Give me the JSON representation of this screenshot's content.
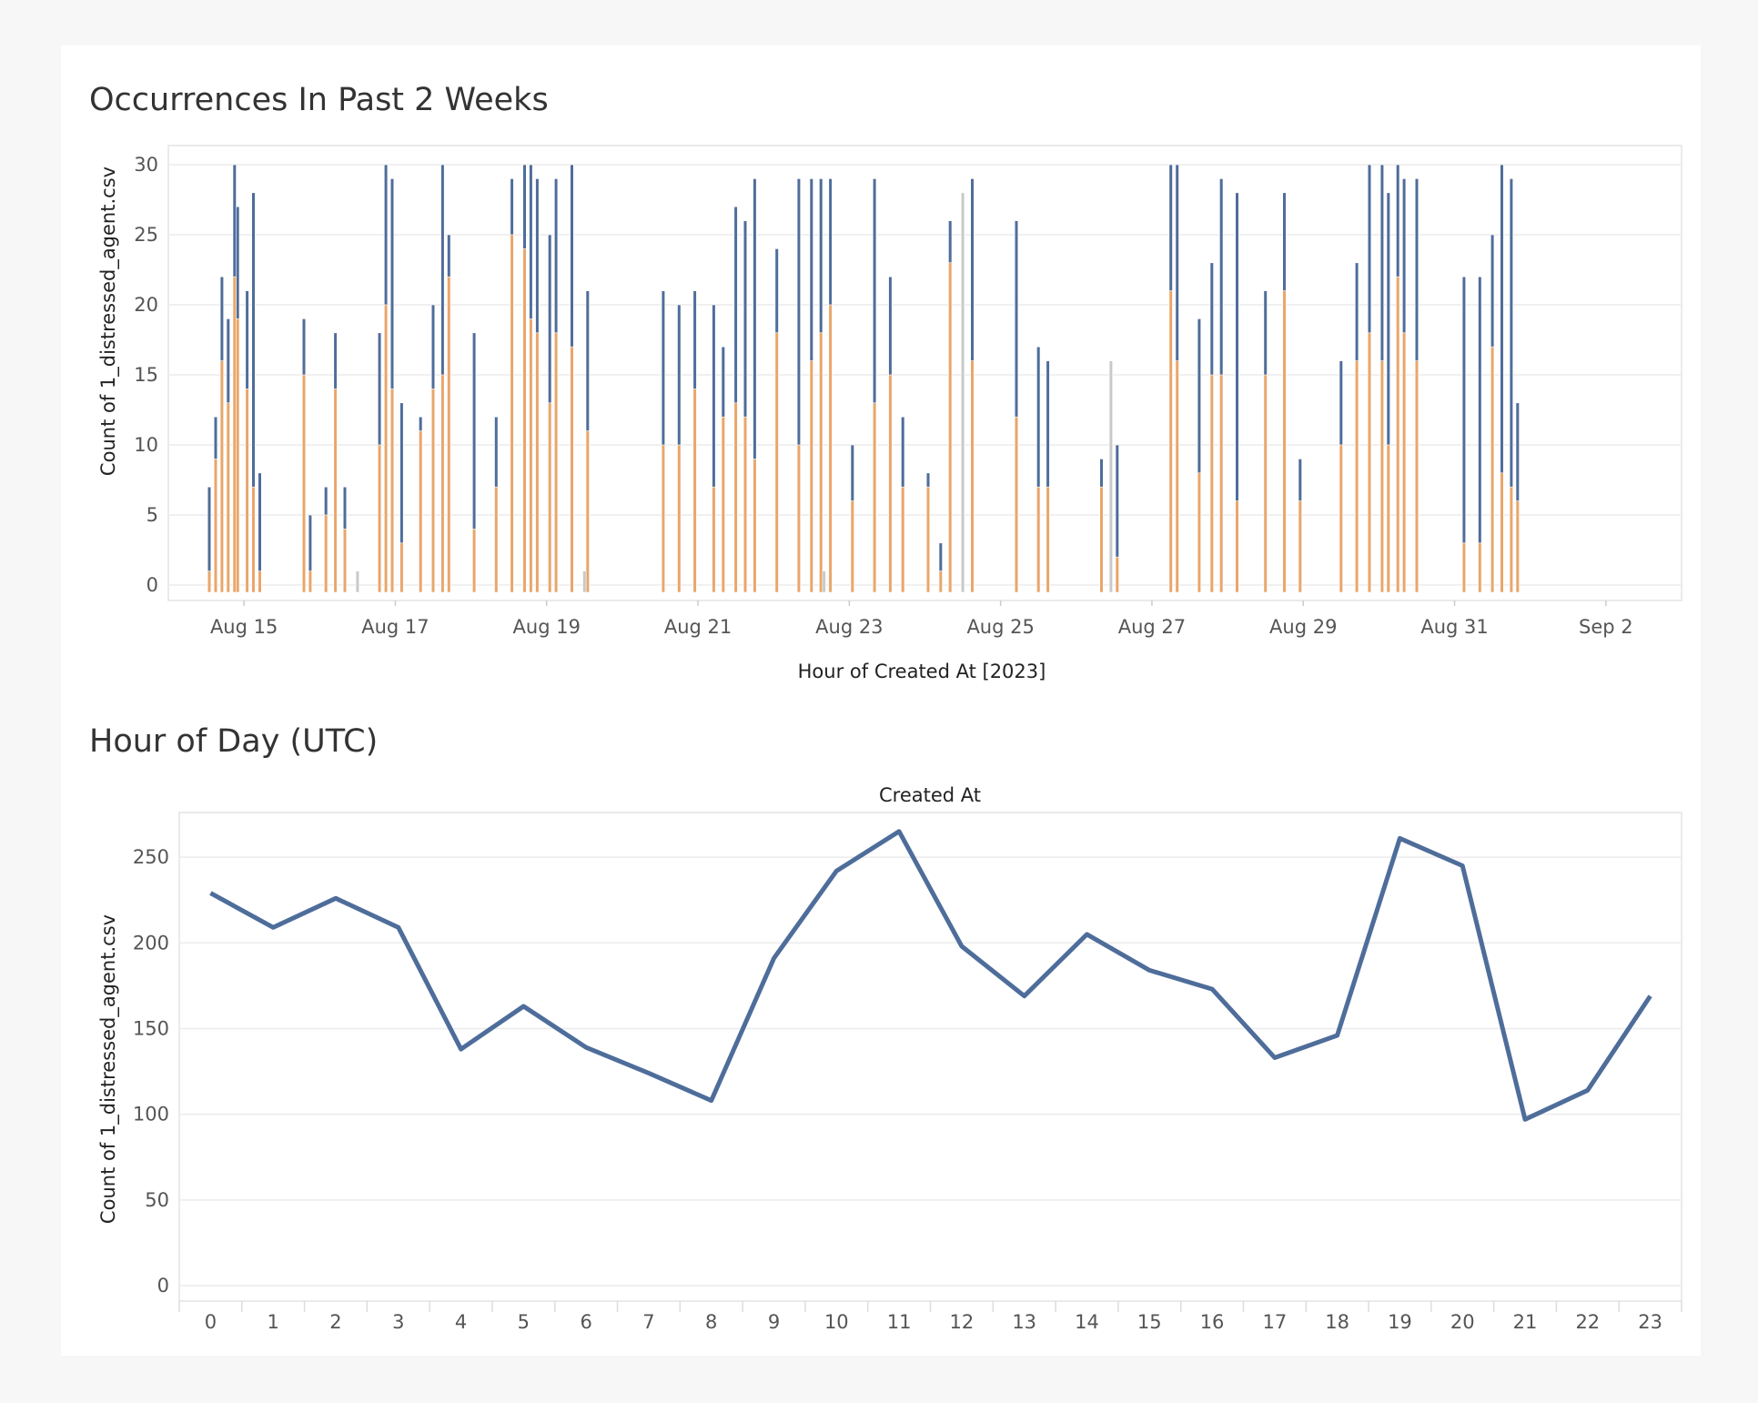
{
  "chart_data": [
    {
      "type": "bar",
      "title": "Occurrences In Past 2 Weeks",
      "xlabel": "Hour of Created At [2023]",
      "ylabel": "Count of 1_distressed_agent.csv",
      "ylim": [
        0,
        30
      ],
      "yticks": [
        0,
        5,
        10,
        15,
        20,
        25,
        30
      ],
      "xlim": [
        "2023-08-14T00:00",
        "2023-09-03T00:00"
      ],
      "xticks": [
        {
          "label": "Aug 15",
          "date": "2023-08-15"
        },
        {
          "label": "Aug 17",
          "date": "2023-08-17"
        },
        {
          "label": "Aug 19",
          "date": "2023-08-19"
        },
        {
          "label": "Aug 21",
          "date": "2023-08-21"
        },
        {
          "label": "Aug 23",
          "date": "2023-08-23"
        },
        {
          "label": "Aug 25",
          "date": "2023-08-25"
        },
        {
          "label": "Aug 27",
          "date": "2023-08-27"
        },
        {
          "label": "Aug 29",
          "date": "2023-08-29"
        },
        {
          "label": "Aug 31",
          "date": "2023-08-31"
        },
        {
          "label": "Sep 2",
          "date": "2023-09-02"
        }
      ],
      "stacked": true,
      "grid": "horizontal",
      "series": [
        {
          "color": "#4e6d9a",
          "values": [
            [
              "2023-08-14T13:00",
              7
            ],
            [
              "2023-08-14T15:00",
              12
            ],
            [
              "2023-08-14T17:00",
              22
            ],
            [
              "2023-08-14T19:00",
              19
            ],
            [
              "2023-08-14T21:00",
              30
            ],
            [
              "2023-08-14T22:00",
              27
            ],
            [
              "2023-08-15T01:00",
              21
            ],
            [
              "2023-08-15T03:00",
              28
            ],
            [
              "2023-08-15T05:00",
              8
            ],
            [
              "2023-08-15T19:00",
              19
            ],
            [
              "2023-08-15T21:00",
              5
            ],
            [
              "2023-08-16T02:00",
              7
            ],
            [
              "2023-08-16T05:00",
              18
            ],
            [
              "2023-08-16T08:00",
              7
            ],
            [
              "2023-08-16T19:00",
              18
            ],
            [
              "2023-08-16T21:00",
              30
            ],
            [
              "2023-08-16T23:00",
              29
            ],
            [
              "2023-08-17T02:00",
              13
            ],
            [
              "2023-08-17T08:00",
              12
            ],
            [
              "2023-08-17T12:00",
              20
            ],
            [
              "2023-08-17T15:00",
              30
            ],
            [
              "2023-08-17T17:00",
              25
            ],
            [
              "2023-08-18T01:00",
              18
            ],
            [
              "2023-08-18T08:00",
              12
            ],
            [
              "2023-08-18T13:00",
              29
            ],
            [
              "2023-08-18T17:00",
              30
            ],
            [
              "2023-08-18T19:00",
              30
            ],
            [
              "2023-08-18T21:00",
              29
            ],
            [
              "2023-08-19T01:00",
              25
            ],
            [
              "2023-08-19T03:00",
              29
            ],
            [
              "2023-08-19T08:00",
              30
            ],
            [
              "2023-08-19T13:00",
              21
            ],
            [
              "2023-08-20T13:00",
              21
            ],
            [
              "2023-08-20T18:00",
              20
            ],
            [
              "2023-08-20T23:00",
              21
            ],
            [
              "2023-08-21T05:00",
              20
            ],
            [
              "2023-08-21T08:00",
              17
            ],
            [
              "2023-08-21T12:00",
              27
            ],
            [
              "2023-08-21T15:00",
              26
            ],
            [
              "2023-08-21T18:00",
              29
            ],
            [
              "2023-08-22T01:00",
              24
            ],
            [
              "2023-08-22T08:00",
              29
            ],
            [
              "2023-08-22T12:00",
              29
            ],
            [
              "2023-08-22T15:00",
              29
            ],
            [
              "2023-08-22T18:00",
              29
            ],
            [
              "2023-08-23T01:00",
              10
            ],
            [
              "2023-08-23T08:00",
              29
            ],
            [
              "2023-08-23T13:00",
              22
            ],
            [
              "2023-08-23T17:00",
              12
            ],
            [
              "2023-08-24T01:00",
              8
            ],
            [
              "2023-08-24T05:00",
              3
            ],
            [
              "2023-08-24T08:00",
              26
            ],
            [
              "2023-08-24T12:00",
              28
            ],
            [
              "2023-08-24T15:00",
              29
            ],
            [
              "2023-08-25T05:00",
              26
            ],
            [
              "2023-08-25T12:00",
              17
            ],
            [
              "2023-08-25T15:00",
              16
            ],
            [
              "2023-08-26T08:00",
              9
            ],
            [
              "2023-08-26T13:00",
              10
            ],
            [
              "2023-08-27T06:00",
              30
            ],
            [
              "2023-08-27T08:00",
              30
            ],
            [
              "2023-08-27T15:00",
              19
            ],
            [
              "2023-08-27T19:00",
              23
            ],
            [
              "2023-08-27T22:00",
              29
            ],
            [
              "2023-08-28T03:00",
              28
            ],
            [
              "2023-08-28T12:00",
              21
            ],
            [
              "2023-08-28T18:00",
              28
            ],
            [
              "2023-08-28T23:00",
              9
            ],
            [
              "2023-08-29T12:00",
              16
            ],
            [
              "2023-08-29T17:00",
              23
            ],
            [
              "2023-08-29T21:00",
              30
            ],
            [
              "2023-08-30T01:00",
              30
            ],
            [
              "2023-08-30T03:00",
              28
            ],
            [
              "2023-08-30T06:00",
              30
            ],
            [
              "2023-08-30T08:00",
              29
            ],
            [
              "2023-08-30T12:00",
              29
            ],
            [
              "2023-08-31T03:00",
              22
            ],
            [
              "2023-08-31T08:00",
              22
            ],
            [
              "2023-08-31T12:00",
              25
            ],
            [
              "2023-08-31T15:00",
              30
            ],
            [
              "2023-08-31T18:00",
              29
            ],
            [
              "2023-08-31T20:00",
              13
            ]
          ]
        },
        {
          "color": "#e9a66a",
          "values": [
            [
              "2023-08-14T13:00",
              1
            ],
            [
              "2023-08-14T15:00",
              9
            ],
            [
              "2023-08-14T17:00",
              16
            ],
            [
              "2023-08-14T19:00",
              13
            ],
            [
              "2023-08-14T21:00",
              22
            ],
            [
              "2023-08-14T22:00",
              19
            ],
            [
              "2023-08-15T01:00",
              14
            ],
            [
              "2023-08-15T03:00",
              7
            ],
            [
              "2023-08-15T05:00",
              1
            ],
            [
              "2023-08-15T19:00",
              15
            ],
            [
              "2023-08-15T21:00",
              1
            ],
            [
              "2023-08-16T02:00",
              5
            ],
            [
              "2023-08-16T05:00",
              14
            ],
            [
              "2023-08-16T08:00",
              4
            ],
            [
              "2023-08-16T19:00",
              10
            ],
            [
              "2023-08-16T21:00",
              20
            ],
            [
              "2023-08-16T23:00",
              14
            ],
            [
              "2023-08-17T02:00",
              3
            ],
            [
              "2023-08-17T08:00",
              11
            ],
            [
              "2023-08-17T12:00",
              14
            ],
            [
              "2023-08-17T15:00",
              15
            ],
            [
              "2023-08-17T17:00",
              22
            ],
            [
              "2023-08-18T01:00",
              4
            ],
            [
              "2023-08-18T08:00",
              7
            ],
            [
              "2023-08-18T13:00",
              25
            ],
            [
              "2023-08-18T17:00",
              24
            ],
            [
              "2023-08-18T19:00",
              19
            ],
            [
              "2023-08-18T21:00",
              18
            ],
            [
              "2023-08-19T01:00",
              13
            ],
            [
              "2023-08-19T03:00",
              18
            ],
            [
              "2023-08-19T08:00",
              17
            ],
            [
              "2023-08-19T13:00",
              11
            ],
            [
              "2023-08-20T13:00",
              10
            ],
            [
              "2023-08-20T18:00",
              10
            ],
            [
              "2023-08-20T23:00",
              14
            ],
            [
              "2023-08-21T05:00",
              7
            ],
            [
              "2023-08-21T08:00",
              12
            ],
            [
              "2023-08-21T12:00",
              13
            ],
            [
              "2023-08-21T15:00",
              12
            ],
            [
              "2023-08-21T18:00",
              9
            ],
            [
              "2023-08-22T01:00",
              18
            ],
            [
              "2023-08-22T08:00",
              10
            ],
            [
              "2023-08-22T12:00",
              16
            ],
            [
              "2023-08-22T15:00",
              18
            ],
            [
              "2023-08-22T18:00",
              20
            ],
            [
              "2023-08-23T01:00",
              6
            ],
            [
              "2023-08-23T08:00",
              13
            ],
            [
              "2023-08-23T13:00",
              15
            ],
            [
              "2023-08-23T17:00",
              7
            ],
            [
              "2023-08-24T01:00",
              7
            ],
            [
              "2023-08-24T05:00",
              1
            ],
            [
              "2023-08-24T08:00",
              23
            ],
            [
              "2023-08-24T12:00",
              11
            ],
            [
              "2023-08-24T15:00",
              16
            ],
            [
              "2023-08-25T05:00",
              12
            ],
            [
              "2023-08-25T12:00",
              7
            ],
            [
              "2023-08-25T15:00",
              7
            ],
            [
              "2023-08-26T08:00",
              7
            ],
            [
              "2023-08-26T13:00",
              2
            ],
            [
              "2023-08-27T06:00",
              21
            ],
            [
              "2023-08-27T08:00",
              16
            ],
            [
              "2023-08-27T15:00",
              8
            ],
            [
              "2023-08-27T19:00",
              15
            ],
            [
              "2023-08-27T22:00",
              15
            ],
            [
              "2023-08-28T03:00",
              6
            ],
            [
              "2023-08-28T12:00",
              15
            ],
            [
              "2023-08-28T18:00",
              21
            ],
            [
              "2023-08-28T23:00",
              6
            ],
            [
              "2023-08-29T12:00",
              10
            ],
            [
              "2023-08-29T17:00",
              16
            ],
            [
              "2023-08-29T21:00",
              18
            ],
            [
              "2023-08-30T01:00",
              16
            ],
            [
              "2023-08-30T03:00",
              10
            ],
            [
              "2023-08-30T06:00",
              22
            ],
            [
              "2023-08-30T08:00",
              18
            ],
            [
              "2023-08-30T12:00",
              16
            ],
            [
              "2023-08-31T03:00",
              3
            ],
            [
              "2023-08-31T08:00",
              3
            ],
            [
              "2023-08-31T12:00",
              17
            ],
            [
              "2023-08-31T15:00",
              8
            ],
            [
              "2023-08-31T18:00",
              7
            ],
            [
              "2023-08-31T20:00",
              6
            ]
          ]
        },
        {
          "color": "#c9c9c9",
          "values": [
            [
              "2023-08-16T12:00",
              1
            ],
            [
              "2023-08-19T12:00",
              1
            ],
            [
              "2023-08-22T16:00",
              1
            ],
            [
              "2023-08-24T12:00",
              28
            ],
            [
              "2023-08-26T11:00",
              16
            ]
          ]
        }
      ]
    },
    {
      "type": "line",
      "title": "Hour of Day (UTC)",
      "header": "Created At",
      "xlabel": "",
      "ylabel": "Count of 1_distressed_agent.csv",
      "ylim": [
        0,
        275
      ],
      "yticks": [
        0,
        50,
        100,
        150,
        200,
        250
      ],
      "grid": "horizontal",
      "color": "#4e6d9a",
      "x": [
        0,
        1,
        2,
        3,
        4,
        5,
        6,
        7,
        8,
        9,
        10,
        11,
        12,
        13,
        14,
        15,
        16,
        17,
        18,
        19,
        20,
        21,
        22,
        23
      ],
      "values": [
        229,
        209,
        226,
        209,
        138,
        163,
        139,
        124,
        108,
        191,
        242,
        265,
        198,
        169,
        205,
        184,
        173,
        133,
        146,
        261,
        245,
        97,
        114,
        169
      ]
    }
  ]
}
